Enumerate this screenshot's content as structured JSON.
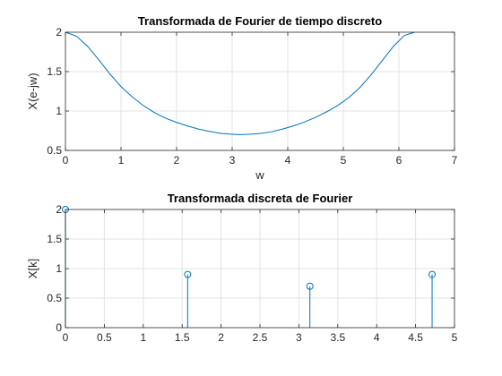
{
  "chart_data": [
    {
      "type": "line",
      "title": "Transformada de Fourier de tiempo discreto",
      "xlabel": "w",
      "ylabel": "X(e-jw)",
      "xlim": [
        0,
        7
      ],
      "ylim": [
        0.5,
        2
      ],
      "xticks": [
        0,
        1,
        2,
        3,
        4,
        5,
        6,
        7
      ],
      "xtick_labels": [
        "0",
        "1",
        "2",
        "3",
        "4",
        "5",
        "6",
        "7"
      ],
      "yticks": [
        0.5,
        1,
        1.5,
        2
      ],
      "ytick_labels": [
        "0.5",
        "1",
        "1.5",
        "2"
      ],
      "grid": true,
      "color": "#0072BD",
      "series": [
        {
          "x": [
            0,
            0.2,
            0.4,
            0.6,
            0.8,
            1.0,
            1.2,
            1.4,
            1.6,
            1.8,
            2.0,
            2.2,
            2.4,
            2.6,
            2.8,
            3.0,
            3.1416,
            3.3,
            3.5,
            3.7,
            3.9,
            4.1,
            4.3,
            4.5,
            4.7,
            4.9,
            5.1,
            5.3,
            5.5,
            5.7,
            5.9,
            6.1,
            6.2832
          ],
          "y": [
            2.0,
            1.95,
            1.82,
            1.65,
            1.47,
            1.31,
            1.18,
            1.07,
            0.98,
            0.91,
            0.855,
            0.81,
            0.77,
            0.74,
            0.715,
            0.705,
            0.7,
            0.705,
            0.715,
            0.735,
            0.77,
            0.81,
            0.86,
            0.92,
            0.99,
            1.07,
            1.17,
            1.3,
            1.46,
            1.64,
            1.82,
            1.96,
            2.0
          ]
        }
      ]
    },
    {
      "type": "stem",
      "title": "Transformada discreta de Fourier",
      "xlabel": "",
      "ylabel": "X[k]",
      "xlim": [
        0,
        5
      ],
      "ylim": [
        0,
        2
      ],
      "xticks": [
        0,
        0.5,
        1,
        1.5,
        2,
        2.5,
        3,
        3.5,
        4,
        4.5,
        5
      ],
      "xtick_labels": [
        "0",
        "0.5",
        "1",
        "1.5",
        "2",
        "2.5",
        "3",
        "3.5",
        "4",
        "4.5",
        "5"
      ],
      "yticks": [
        0,
        0.5,
        1,
        1.5,
        2
      ],
      "ytick_labels": [
        "0",
        "0.5",
        "1",
        "1.5",
        "2"
      ],
      "grid": true,
      "color": "#0072BD",
      "series": [
        {
          "x": [
            0,
            1.5708,
            3.1416,
            4.7124
          ],
          "y": [
            2.0,
            0.9,
            0.7,
            0.9
          ]
        }
      ]
    }
  ]
}
